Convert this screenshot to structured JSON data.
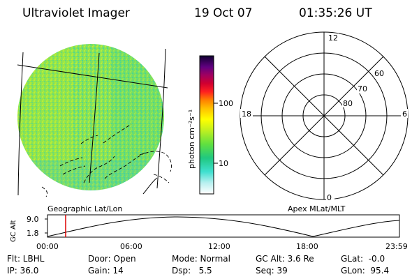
{
  "header": {
    "instrument": "Ultraviolet Imager",
    "date": "19 Oct 07",
    "time": "01:35:26 UT"
  },
  "colorbar": {
    "unit_label": "photon cm⁻²s⁻¹",
    "ticks": [
      "100",
      "10"
    ]
  },
  "left_panel": {
    "label": "Geographic Lat/Lon"
  },
  "right_panel": {
    "label": "Apex MLat/MLT",
    "mlt_labels": [
      "12",
      "18",
      "6",
      "0"
    ],
    "mlat_labels": [
      "60",
      "70",
      "80"
    ]
  },
  "timeline": {
    "y_label": "GC Alt",
    "y_ticks": [
      "9.0",
      "1.8"
    ],
    "x_ticks": [
      "00:00",
      "06:00",
      "12:00",
      "18:00",
      "23:59"
    ]
  },
  "status": {
    "filter": "Flt: LBHL",
    "ip": "IP: 36.0",
    "door": "Door: Open",
    "gain": "Gain: 14",
    "mode": "Mode: Normal",
    "dsp": "Dsp:   5.5",
    "gc_alt": "GC Alt: 3.6 Re",
    "seq": "Seq: 39",
    "glat": "GLat:  -0.0",
    "glon": "GLon:  95.4"
  },
  "colors": {
    "disk_base": "#7fe05a",
    "cursor": "#dd0000"
  }
}
